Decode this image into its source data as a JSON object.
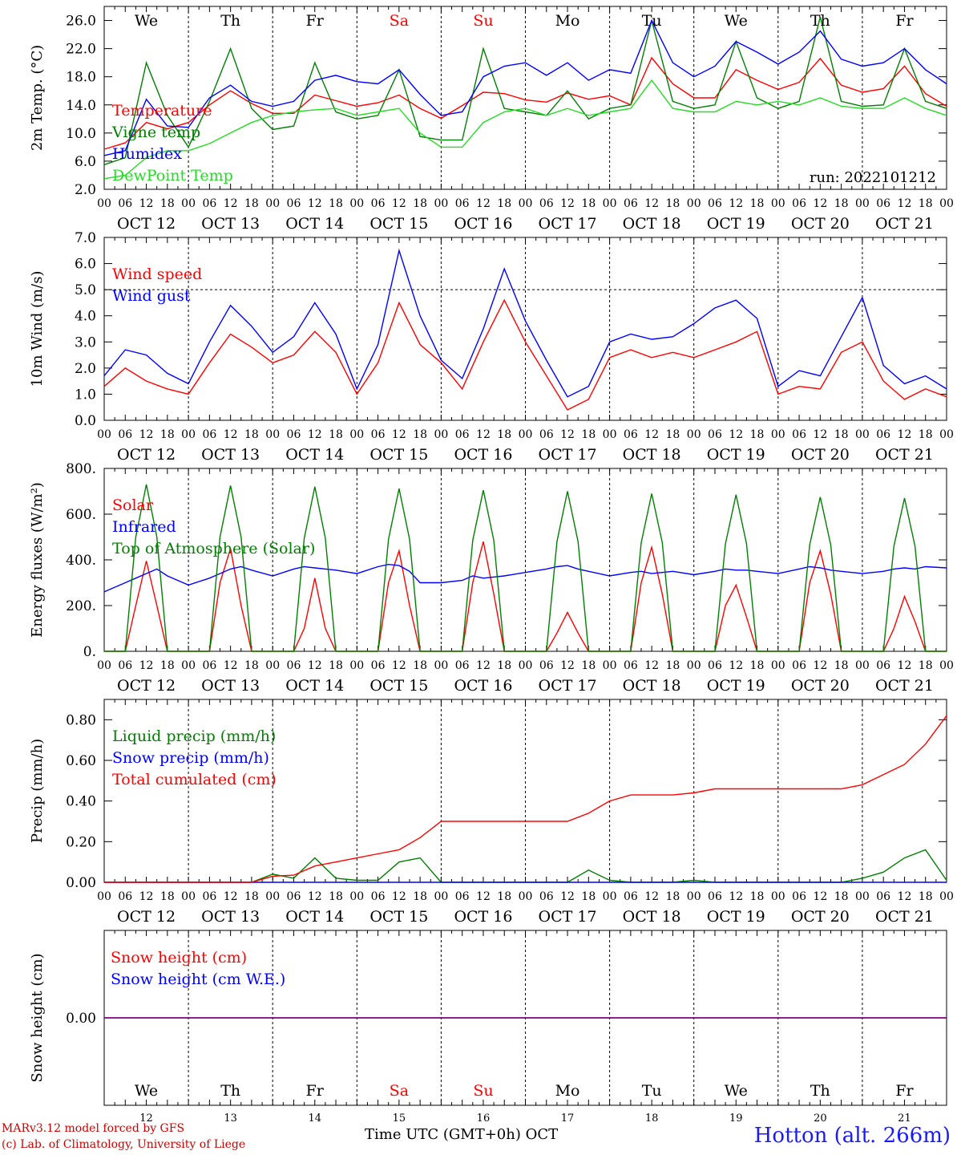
{
  "page": {
    "credit_line1": "MARv3.12 model forced by GFS",
    "credit_line2": "(c) Lab. of Climatology, University of Liege",
    "x_axis_label": "Time UTC (GMT+0h) OCT",
    "station": "Hotton (alt. 266m)"
  },
  "colors": {
    "red": "#ff0000",
    "green": "#008000",
    "blue": "#0000ff",
    "light_green": "#22dd22",
    "purple": "#800080",
    "weekend": "#ff0000"
  },
  "chart_data": [
    {
      "type": "line",
      "id": "temperature",
      "ylabel": "2m Temp. (°C)",
      "ylim": [
        2.0,
        28.0
      ],
      "yticks": [
        2.0,
        6.0,
        10.0,
        14.0,
        18.0,
        22.0,
        26.0
      ],
      "ytick_labels": [
        "2.0",
        "6.0",
        "10.0",
        "14.0",
        "18.0",
        "22.0",
        "26.0"
      ],
      "annotation": "run: 2022101212",
      "day_names": [
        "We",
        "Th",
        "Fr",
        "Sa",
        "Su",
        "Mo",
        "Tu",
        "We",
        "Th",
        "Fr"
      ],
      "weekend_days": [
        3,
        4
      ],
      "x_hours": [
        0,
        6,
        12,
        18,
        24,
        30,
        36,
        42,
        48,
        54,
        60,
        66,
        72,
        78,
        84,
        90,
        96,
        102,
        108,
        114,
        120,
        126,
        132,
        138,
        144,
        150,
        156,
        162,
        168,
        174,
        180,
        186,
        192,
        198,
        204,
        210,
        216,
        222,
        228,
        234,
        240
      ],
      "series": [
        {
          "name": "Temperature",
          "color": "red",
          "values": [
            7.7,
            8.6,
            11.5,
            10.6,
            11.5,
            14.0,
            16.0,
            14.2,
            12.8,
            12.8,
            15.4,
            14.6,
            13.8,
            14.3,
            15.4,
            13.5,
            12.1,
            13.9,
            15.8,
            15.6,
            14.7,
            14.4,
            15.7,
            14.8,
            15.3,
            14.0,
            20.7,
            17.0,
            15.0,
            15.0,
            19.0,
            17.5,
            16.2,
            17.2,
            20.6,
            16.8,
            15.8,
            16.3,
            19.5,
            15.6,
            13.8
          ]
        },
        {
          "name": "Vigne temp",
          "color": "green",
          "values": [
            5.5,
            6.5,
            20.0,
            12.5,
            8.0,
            14.5,
            22.0,
            13.5,
            10.5,
            11.0,
            20.0,
            13.0,
            12.0,
            12.5,
            19.0,
            9.5,
            9.0,
            9.0,
            22.0,
            13.5,
            13.0,
            12.5,
            16.0,
            12.0,
            13.5,
            14.0,
            26.0,
            14.5,
            13.5,
            14.0,
            23.0,
            15.0,
            13.5,
            14.5,
            26.5,
            14.5,
            13.8,
            14.0,
            22.0,
            14.5,
            13.5
          ]
        },
        {
          "name": "Humidex",
          "color": "blue",
          "values": [
            6.8,
            7.5,
            14.8,
            11.0,
            10.8,
            15.0,
            16.8,
            14.5,
            13.8,
            14.5,
            17.5,
            18.2,
            17.3,
            17.0,
            19.0,
            15.5,
            12.5,
            13.0,
            18.0,
            19.5,
            20.0,
            18.2,
            20.0,
            17.5,
            19.0,
            18.5,
            26.0,
            20.0,
            18.0,
            19.5,
            23.0,
            21.5,
            19.8,
            21.5,
            24.5,
            20.5,
            19.5,
            20.0,
            22.0,
            19.0,
            17.0
          ]
        },
        {
          "name": "DewPoint Temp",
          "color": "light_green",
          "values": [
            3.5,
            4.0,
            6.5,
            7.5,
            7.5,
            8.5,
            10.0,
            11.5,
            12.5,
            13.0,
            13.3,
            13.5,
            12.5,
            13.0,
            13.5,
            10.0,
            8.0,
            8.0,
            11.5,
            13.0,
            13.5,
            12.5,
            13.5,
            12.5,
            13.0,
            13.5,
            17.5,
            13.5,
            13.0,
            13.0,
            14.5,
            14.0,
            14.5,
            14.0,
            15.0,
            13.8,
            13.5,
            13.5,
            15.0,
            13.5,
            12.5
          ]
        }
      ]
    },
    {
      "type": "line",
      "id": "wind",
      "ylabel": "10m Wind (m/s)",
      "ylim": [
        0.0,
        7.0
      ],
      "yticks": [
        0.0,
        1.0,
        2.0,
        3.0,
        4.0,
        5.0,
        6.0,
        7.0
      ],
      "ytick_labels": [
        "0.0",
        "1.0",
        "2.0",
        "3.0",
        "4.0",
        "5.0",
        "6.0",
        "7.0"
      ],
      "reference_line": 5.0,
      "x_hours": [
        0,
        6,
        12,
        18,
        24,
        30,
        36,
        42,
        48,
        54,
        60,
        66,
        72,
        78,
        84,
        90,
        96,
        102,
        108,
        114,
        120,
        126,
        132,
        138,
        144,
        150,
        156,
        162,
        168,
        174,
        180,
        186,
        192,
        198,
        204,
        210,
        216,
        222,
        228,
        234,
        240
      ],
      "series": [
        {
          "name": "Wind speed",
          "color": "red",
          "values": [
            1.3,
            2.0,
            1.5,
            1.2,
            1.0,
            2.2,
            3.3,
            2.8,
            2.2,
            2.5,
            3.4,
            2.6,
            1.0,
            2.2,
            4.5,
            2.9,
            2.2,
            1.2,
            3.0,
            4.6,
            3.0,
            1.7,
            0.4,
            0.8,
            2.4,
            2.7,
            2.4,
            2.6,
            2.4,
            2.7,
            3.0,
            3.4,
            1.0,
            1.3,
            1.2,
            2.6,
            3.0,
            1.5,
            0.8,
            1.2,
            0.9
          ]
        },
        {
          "name": "Wind gust",
          "color": "blue",
          "values": [
            1.7,
            2.7,
            2.5,
            1.8,
            1.4,
            3.0,
            4.4,
            3.6,
            2.6,
            3.2,
            4.5,
            3.3,
            1.2,
            2.9,
            6.5,
            4.0,
            2.3,
            1.6,
            3.5,
            5.8,
            3.8,
            2.3,
            0.9,
            1.3,
            3.0,
            3.3,
            3.1,
            3.2,
            3.7,
            4.3,
            4.6,
            3.9,
            1.3,
            1.9,
            1.7,
            3.2,
            4.7,
            2.1,
            1.4,
            1.7,
            1.2
          ]
        }
      ]
    },
    {
      "type": "line",
      "id": "energy",
      "ylabel": "Energy fluxes (W/m²)",
      "ylim": [
        0,
        800
      ],
      "yticks": [
        0,
        200,
        400,
        600,
        800
      ],
      "ytick_labels": [
        "0.",
        "200.",
        "400.",
        "600.",
        "800."
      ],
      "x_hours": [
        0,
        6,
        9,
        12,
        15,
        18,
        24,
        30,
        33,
        36,
        39,
        42,
        48,
        54,
        57,
        60,
        63,
        66,
        72,
        78,
        81,
        84,
        87,
        90,
        96,
        102,
        105,
        108,
        111,
        114,
        120,
        126,
        129,
        132,
        135,
        138,
        144,
        150,
        153,
        156,
        159,
        162,
        168,
        174,
        177,
        180,
        183,
        186,
        192,
        198,
        201,
        204,
        207,
        210,
        216,
        222,
        225,
        228,
        231,
        234,
        240
      ],
      "series": [
        {
          "name": "Solar",
          "color": "red",
          "values": [
            0,
            0,
            200,
            395,
            200,
            0,
            0,
            0,
            300,
            450,
            200,
            0,
            0,
            0,
            100,
            320,
            100,
            0,
            0,
            0,
            300,
            440,
            200,
            0,
            0,
            0,
            300,
            480,
            250,
            0,
            0,
            0,
            80,
            170,
            80,
            0,
            0,
            0,
            300,
            455,
            250,
            0,
            0,
            0,
            200,
            290,
            150,
            0,
            0,
            0,
            300,
            440,
            250,
            0,
            0,
            0,
            100,
            240,
            130,
            0,
            0
          ]
        },
        {
          "name": "Infrared",
          "color": "blue",
          "values": [
            260,
            300,
            320,
            340,
            360,
            330,
            290,
            320,
            340,
            360,
            370,
            355,
            330,
            360,
            370,
            365,
            360,
            355,
            340,
            370,
            380,
            375,
            350,
            300,
            300,
            310,
            330,
            320,
            325,
            330,
            345,
            360,
            370,
            375,
            360,
            350,
            330,
            345,
            350,
            340,
            345,
            350,
            335,
            350,
            360,
            355,
            355,
            350,
            340,
            360,
            370,
            365,
            355,
            350,
            340,
            350,
            360,
            365,
            360,
            370,
            365
          ]
        },
        {
          "name": "Top of Atmosphere (Solar)",
          "color": "green",
          "values": [
            0,
            0,
            500,
            730,
            500,
            0,
            0,
            0,
            500,
            725,
            500,
            0,
            0,
            0,
            495,
            720,
            495,
            0,
            0,
            0,
            490,
            712,
            490,
            0,
            0,
            0,
            485,
            705,
            485,
            0,
            0,
            0,
            480,
            700,
            480,
            0,
            0,
            0,
            475,
            690,
            475,
            0,
            0,
            0,
            470,
            685,
            470,
            0,
            0,
            0,
            465,
            675,
            465,
            0,
            0,
            0,
            460,
            670,
            460,
            0,
            0
          ]
        }
      ]
    },
    {
      "type": "line",
      "id": "precip",
      "ylabel": "Precip (mm/h)",
      "ylim": [
        0.0,
        0.9
      ],
      "yticks": [
        0.0,
        0.2,
        0.4,
        0.6,
        0.8
      ],
      "ytick_labels": [
        "0.00",
        "0.20",
        "0.40",
        "0.60",
        "0.80"
      ],
      "x_hours": [
        0,
        6,
        12,
        18,
        24,
        30,
        36,
        42,
        48,
        54,
        60,
        66,
        72,
        78,
        84,
        90,
        96,
        102,
        108,
        114,
        120,
        126,
        132,
        138,
        144,
        150,
        156,
        162,
        168,
        174,
        180,
        186,
        192,
        198,
        204,
        210,
        216,
        222,
        228,
        234,
        240
      ],
      "series": [
        {
          "name": "Liquid precip (mm/h)",
          "color": "green",
          "values": [
            0,
            0,
            0,
            0,
            0,
            0,
            0,
            0,
            0.04,
            0.02,
            0.12,
            0.02,
            0.01,
            0.01,
            0.1,
            0.12,
            0,
            0,
            0,
            0,
            0,
            0,
            0,
            0.06,
            0.01,
            0,
            0,
            0,
            0.01,
            0,
            0,
            0,
            0,
            0,
            0,
            0,
            0.02,
            0.05,
            0.12,
            0.16,
            0.01
          ]
        },
        {
          "name": "Snow precip (mm/h)",
          "color": "blue",
          "values": [
            0,
            0,
            0,
            0,
            0,
            0,
            0,
            0,
            0,
            0,
            0,
            0,
            0,
            0,
            0,
            0,
            0,
            0,
            0,
            0,
            0,
            0,
            0,
            0,
            0,
            0,
            0,
            0,
            0,
            0,
            0,
            0,
            0,
            0,
            0,
            0,
            0,
            0,
            0,
            0,
            0
          ]
        },
        {
          "name": "Total cumulated (cm)",
          "color": "red",
          "values": [
            0,
            0,
            0,
            0,
            0,
            0,
            0,
            0,
            0.03,
            0.035,
            0.08,
            0.1,
            0.12,
            0.14,
            0.16,
            0.22,
            0.3,
            0.3,
            0.3,
            0.3,
            0.3,
            0.3,
            0.3,
            0.34,
            0.4,
            0.43,
            0.43,
            0.43,
            0.44,
            0.46,
            0.46,
            0.46,
            0.46,
            0.46,
            0.46,
            0.46,
            0.48,
            0.53,
            0.58,
            0.68,
            0.82
          ]
        }
      ]
    },
    {
      "type": "line",
      "id": "snow",
      "ylabel": "Snow height (cm)",
      "ylim": [
        -1,
        1
      ],
      "yticks": [
        0.0
      ],
      "ytick_labels": [
        "0.00"
      ],
      "day_names": [
        "We",
        "Th",
        "Fr",
        "Sa",
        "Su",
        "Mo",
        "Tu",
        "We",
        "Th",
        "Fr"
      ],
      "weekend_days": [
        3,
        4
      ],
      "day_numbers": [
        "12",
        "13",
        "14",
        "15",
        "16",
        "17",
        "18",
        "19",
        "20",
        "21"
      ],
      "x_hours": [
        0,
        240
      ],
      "series": [
        {
          "name": "Snow height (cm)",
          "color": "red",
          "values": [
            0,
            0
          ]
        },
        {
          "name": "Snow height (cm W.E.)",
          "color": "blue",
          "values": [
            0,
            0
          ]
        }
      ]
    }
  ],
  "time_axis": {
    "hour_labels": [
      "00",
      "06",
      "12",
      "18"
    ],
    "final_label": "00",
    "date_labels": [
      "OCT 12",
      "OCT 13",
      "OCT 14",
      "OCT 15",
      "OCT 16",
      "OCT 17",
      "OCT 18",
      "OCT 19",
      "OCT 20",
      "OCT 21"
    ]
  }
}
